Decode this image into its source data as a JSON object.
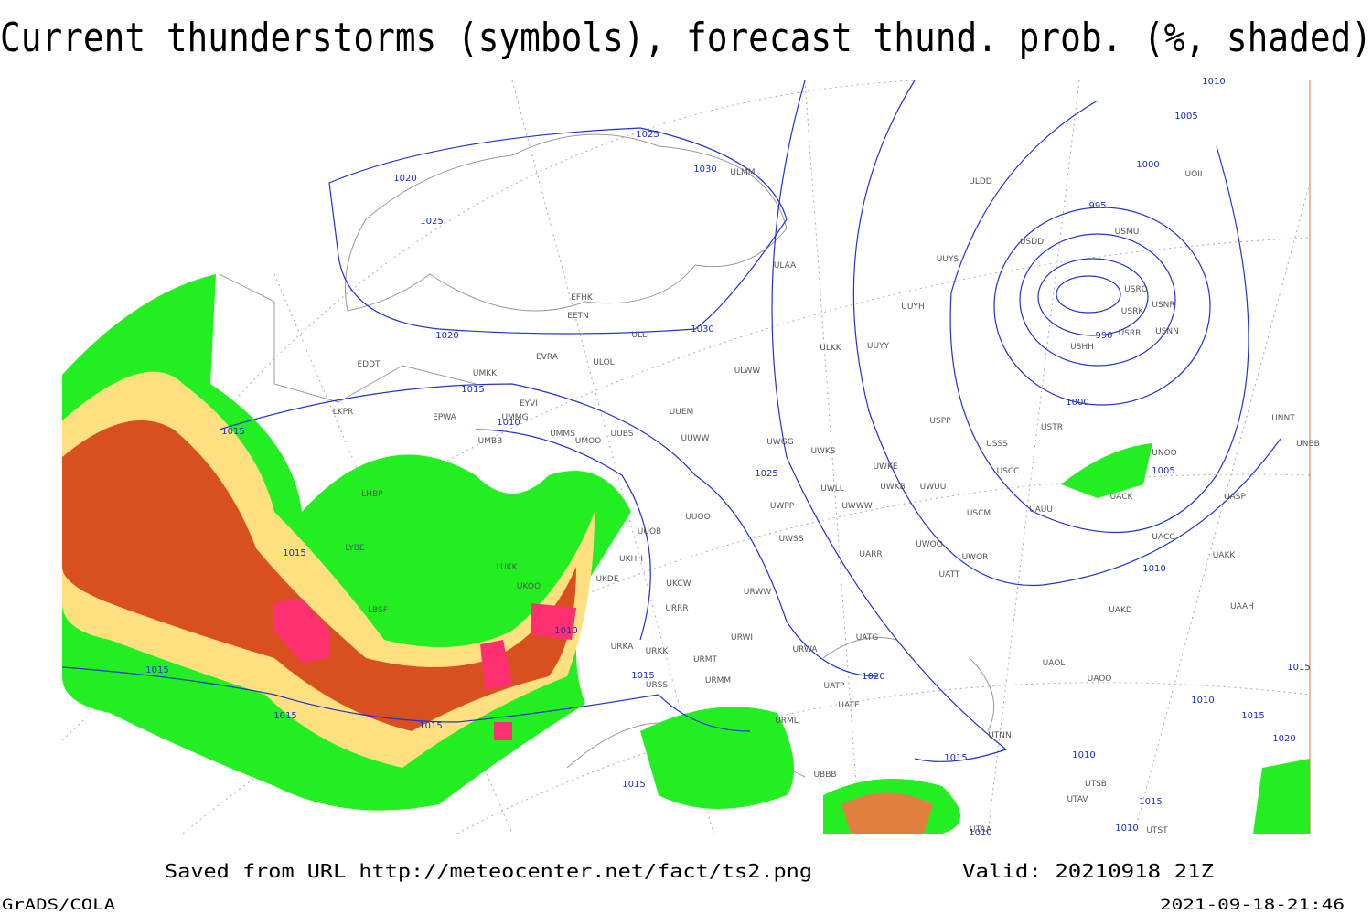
{
  "title": "Current thunderstorms (symbols), forecast thund. prob. (%, shaded)",
  "footer": {
    "saved": "Saved from URL http://meteocenter.net/fact/ts2.png",
    "valid": "Valid: 20210918 21Z",
    "software": "GrADS/COLA",
    "timestamp": "2021-09-18-21:46"
  },
  "isobar_labels": [
    1025,
    1030,
    1020,
    1025,
    1030,
    1020,
    1015,
    1010,
    1015,
    1025,
    1015,
    1010,
    1015,
    1015,
    1020,
    1015,
    1015,
    1015,
    1015,
    1010,
    1010,
    1005,
    1000,
    990,
    995,
    1000,
    1005,
    1010,
    1015,
    1010,
    1015,
    1020,
    1015,
    1010,
    1010
  ],
  "stations": [
    "ULDD",
    "ULAA",
    "ULLI",
    "ULOL",
    "ULWW",
    "UUEM",
    "UUWW",
    "ULMM",
    "EFHK",
    "EETN",
    "EVRA",
    "UMKK",
    "EYVI",
    "UMMG",
    "EPWA",
    "UMMS",
    "UMOO",
    "UUBS",
    "UMBB",
    "EDDT",
    "LKPR",
    "LHBP",
    "LYBE",
    "UKHH",
    "UUOB",
    "UKDE",
    "UKOO",
    "LUKK",
    "LBSF",
    "URKA",
    "URKK",
    "URMT",
    "URMM",
    "URSS",
    "UUOO",
    "UKCW",
    "URRR",
    "URWI",
    "URWW",
    "UWPP",
    "UWSS",
    "UWWW",
    "UWGG",
    "UWKS",
    "UWLL",
    "UWKE",
    "UWKB",
    "UWUU",
    "UARR",
    "UWOO",
    "UWOR",
    "UATT",
    "UATG",
    "URWA",
    "UATP",
    "UATE",
    "URML",
    "UBBB",
    "UTAA",
    "UTNN",
    "UAOL",
    "UAOO",
    "UAKD",
    "UAAH",
    "UAKK",
    "UACC",
    "UASP",
    "UACK",
    "UAUU",
    "USCM",
    "USCC",
    "USSS",
    "USTR",
    "USPP",
    "ULKK",
    "UUYY",
    "UUYH",
    "UUYS",
    "USDD",
    "USMU",
    "USRO",
    "USRK",
    "USNR",
    "USRR",
    "USNN",
    "USHH",
    "UNOO",
    "UNNT",
    "UNBB",
    "UOII",
    "UTSB",
    "UTAV",
    "UTST"
  ]
}
